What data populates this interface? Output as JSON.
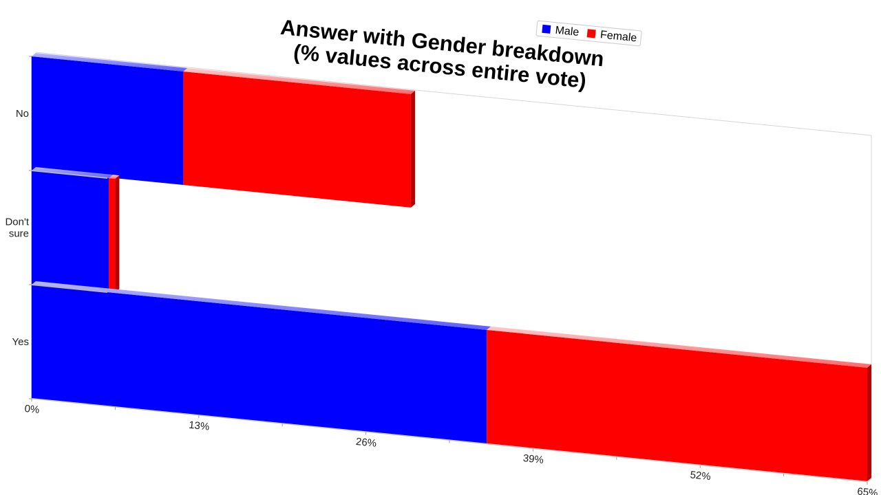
{
  "chart_data": {
    "type": "bar",
    "orientation": "horizontal",
    "stacked": true,
    "title": "Answer with Gender breakdown",
    "subtitle": "(% values across entire vote)",
    "categories": [
      "No",
      "Don't sure",
      "Yes"
    ],
    "series": [
      {
        "name": "Male",
        "color": "#0000ff",
        "values": [
          11.8,
          6.0,
          35.4
        ]
      },
      {
        "name": "Female",
        "color": "#ff0000",
        "values": [
          17.7,
          0.5,
          29.6
        ]
      }
    ],
    "x_ticks": [
      "0%",
      "13%",
      "26%",
      "39%",
      "52%",
      "65%"
    ],
    "xlim": [
      0,
      65
    ],
    "legend_position": "top-right",
    "grid": false
  }
}
